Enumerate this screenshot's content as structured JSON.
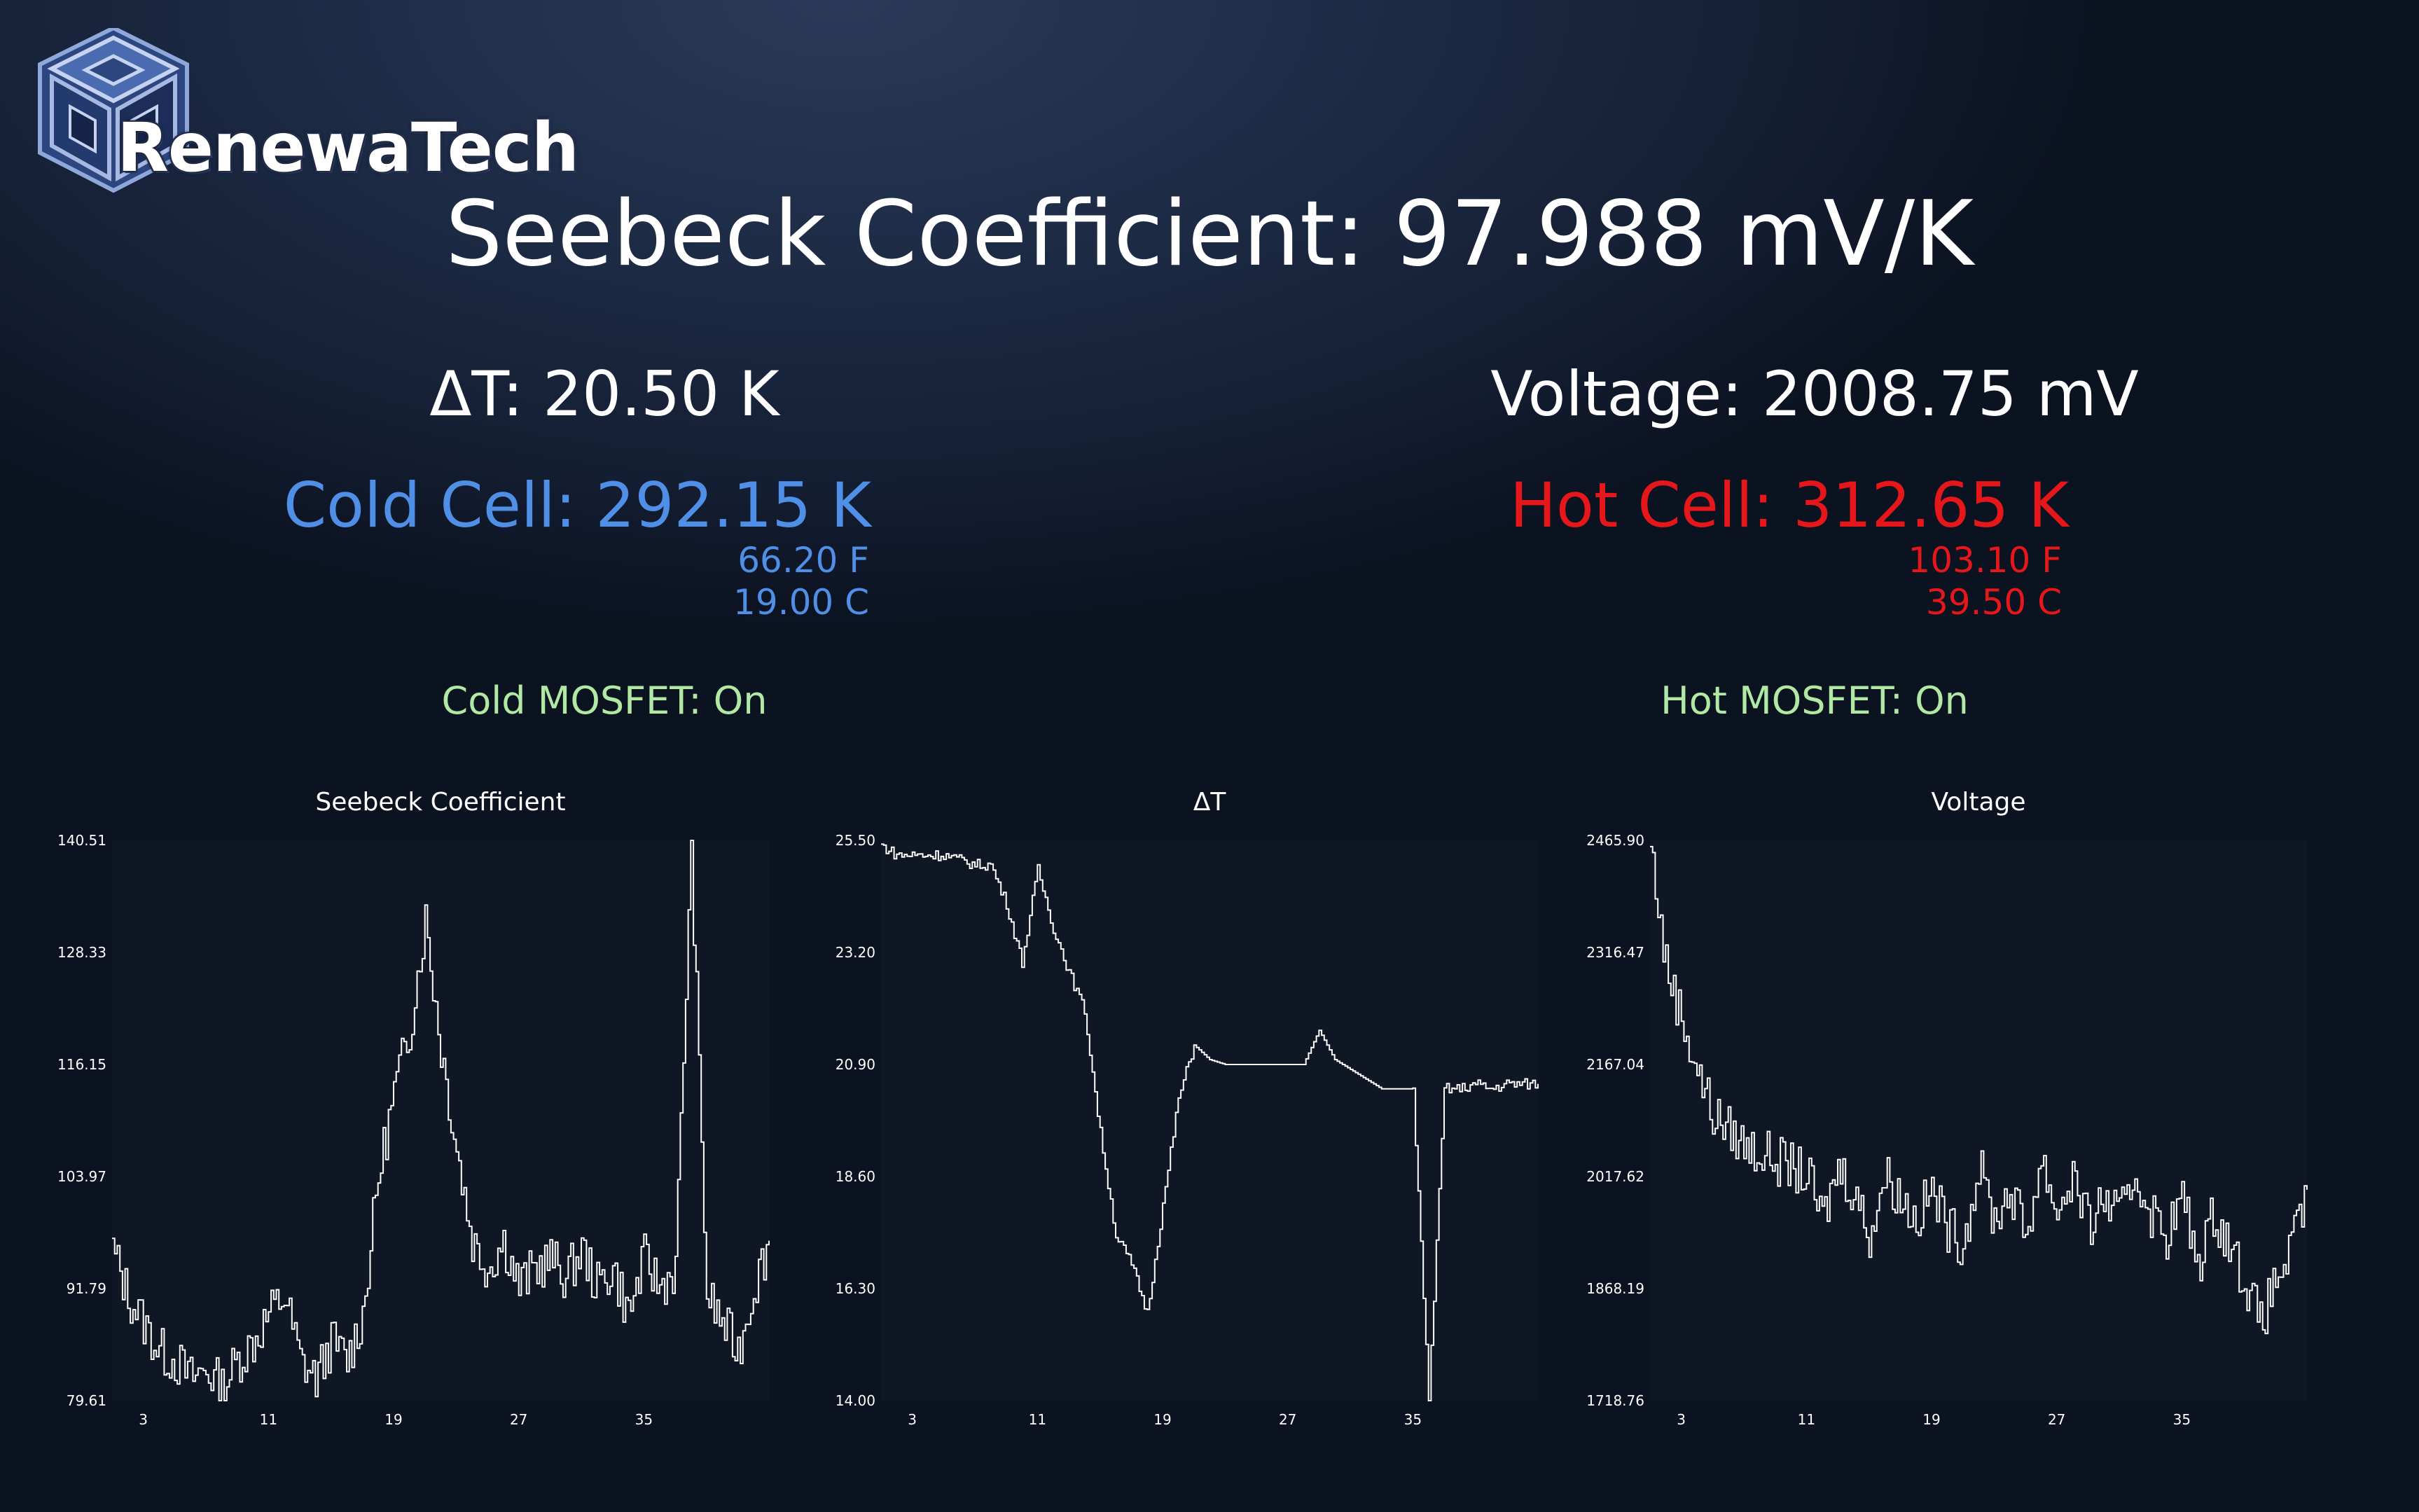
{
  "app": {
    "brand": "RenewaTech"
  },
  "header": {
    "seebeck_label": "Seebeck Coefficient: 97.988 mV/K"
  },
  "stats": {
    "delta_t": "ΔT: 20.50 K",
    "voltage": "Voltage: 2008.75 mV"
  },
  "cold_cell": {
    "label": "Cold Cell: 292.15 K",
    "fahrenheit": "66.20 F",
    "celsius": "19.00 C",
    "mosfet": "Cold MOSFET: On",
    "color": "#4f8fe6"
  },
  "hot_cell": {
    "label": "Hot Cell: 312.65 K",
    "fahrenheit": "103.10 F",
    "celsius": "39.50 C",
    "mosfet": "Hot MOSFET: On",
    "color": "#e6171b"
  },
  "colors": {
    "mosfet_on": "#b0e8a4",
    "plot_bg": "#0f1624",
    "line": "#ffffff"
  },
  "chart_data": [
    {
      "type": "line",
      "title": "Seebeck Coefficient",
      "x_ticks": [
        "3",
        "11",
        "19",
        "27",
        "35"
      ],
      "y_ticks": [
        "140.51",
        "128.33",
        "116.15",
        "103.97",
        "91.79",
        "79.61"
      ],
      "ylim": [
        79.61,
        140.51
      ],
      "x": [
        0,
        1,
        2,
        3,
        4,
        5,
        6,
        7,
        8,
        9,
        10,
        11,
        12,
        13,
        14,
        15,
        16,
        17,
        18,
        19,
        20,
        21,
        22,
        23,
        24,
        25,
        26,
        27,
        28,
        29,
        30,
        31,
        32,
        33,
        34,
        35,
        36,
        37,
        38,
        39,
        40,
        41,
        42
      ],
      "values": [
        96,
        91,
        88,
        85,
        84,
        82,
        83,
        81,
        84,
        86,
        89,
        91,
        84,
        82,
        86,
        84,
        89,
        104,
        113,
        120,
        132,
        118,
        107,
        97,
        94,
        97,
        92,
        94,
        95,
        93,
        96,
        92,
        94,
        89,
        95,
        92,
        94,
        140,
        91,
        88,
        85,
        92,
        97
      ],
      "grid": false,
      "legend": "none"
    },
    {
      "type": "line",
      "title": "ΔT",
      "x_ticks": [
        "3",
        "11",
        "19",
        "27",
        "35"
      ],
      "y_ticks": [
        "25.50",
        "23.20",
        "20.90",
        "18.60",
        "16.30",
        "14.00"
      ],
      "ylim": [
        14.0,
        25.5
      ],
      "x": [
        0,
        1,
        2,
        3,
        4,
        5,
        6,
        7,
        8,
        9,
        10,
        11,
        12,
        13,
        14,
        15,
        16,
        17,
        18,
        19,
        20,
        21,
        22,
        23,
        24,
        25,
        26,
        27,
        28,
        29,
        30,
        31,
        32,
        33,
        34,
        35,
        36,
        37,
        38,
        39,
        40,
        41,
        42
      ],
      "values": [
        25.4,
        25.2,
        25.2,
        25.2,
        25.2,
        25.1,
        25.0,
        25.0,
        24.2,
        23.0,
        24.9,
        23.7,
        22.8,
        22.0,
        19.5,
        17.4,
        16.8,
        15.8,
        18.0,
        20.2,
        21.3,
        21.0,
        20.9,
        20.9,
        20.9,
        20.9,
        20.9,
        20.9,
        21.6,
        21.0,
        20.8,
        20.6,
        20.4,
        20.4,
        20.4,
        14.0,
        20.4,
        20.4,
        20.5,
        20.4,
        20.5,
        20.5,
        20.5
      ],
      "grid": false,
      "legend": "none"
    },
    {
      "type": "line",
      "title": "Voltage",
      "x_ticks": [
        "3",
        "11",
        "19",
        "27",
        "35"
      ],
      "y_ticks": [
        "2465.90",
        "2316.47",
        "2167.04",
        "2017.62",
        "1868.19",
        "1718.76"
      ],
      "ylim": [
        1718.76,
        2465.9
      ],
      "x": [
        0,
        1,
        2,
        3,
        4,
        5,
        6,
        7,
        8,
        9,
        10,
        11,
        12,
        13,
        14,
        15,
        16,
        17,
        18,
        19,
        20,
        21,
        22,
        23,
        24,
        25,
        26,
        27,
        28,
        29,
        30,
        31,
        32,
        33,
        34,
        35,
        36,
        37,
        38,
        39,
        40,
        41,
        42
      ],
      "values": [
        2460,
        2300,
        2230,
        2160,
        2100,
        2080,
        2060,
        2050,
        2040,
        2030,
        2020,
        1960,
        2030,
        2000,
        1940,
        2020,
        1990,
        1960,
        2000,
        1950,
        1930,
        2030,
        1960,
        2000,
        1940,
        2040,
        1970,
        2020,
        1950,
        1990,
        1960,
        2020,
        1970,
        1940,
        1990,
        1900,
        1970,
        1930,
        1880,
        1820,
        1880,
        1920,
        2000
      ],
      "grid": false,
      "legend": "none"
    }
  ]
}
